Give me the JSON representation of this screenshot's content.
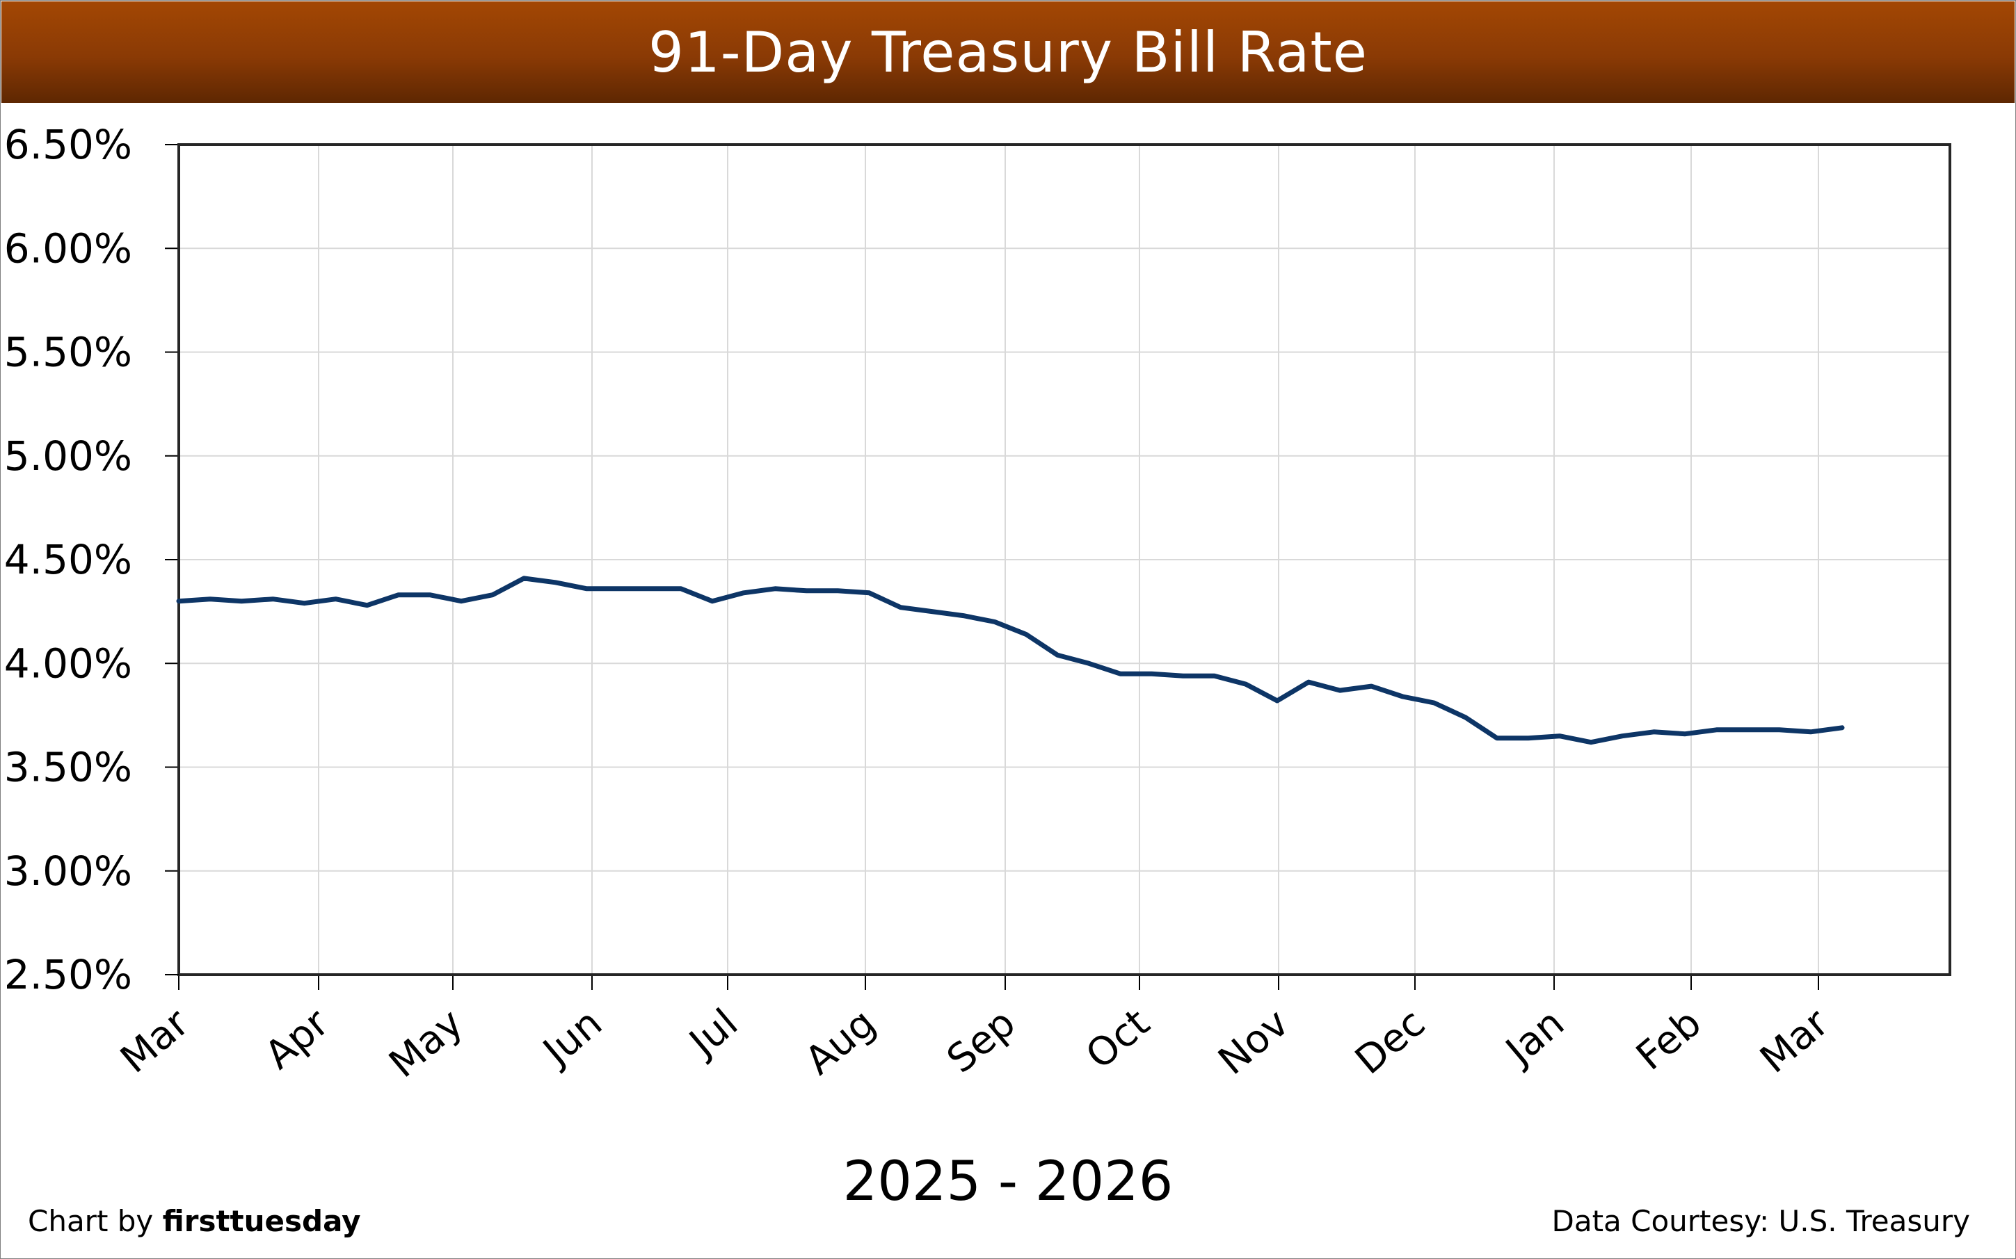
{
  "chart_data": {
    "type": "line",
    "title": "91-Day Treasury Bill Rate",
    "xlabel": "2025 - 2026",
    "ylabel": "",
    "ylim": [
      2.5,
      6.5
    ],
    "y_tick_values": [
      2.5,
      3.0,
      3.5,
      4.0,
      4.5,
      5.0,
      5.5,
      6.0,
      6.5
    ],
    "y_tick_labels": [
      "2.50%",
      "3.00%",
      "3.50%",
      "4.00%",
      "4.50%",
      "5.00%",
      "5.50%",
      "6.00%",
      "6.50%"
    ],
    "x_tick_labels": [
      "Mar",
      "Apr",
      "May",
      "Jun",
      "Jul",
      "Aug",
      "Sep",
      "Oct",
      "Nov",
      "Dec",
      "Jan",
      "Feb",
      "Mar"
    ],
    "grid": true,
    "legend": "none",
    "series": [
      {
        "color": "#0d3566",
        "values": [
          4.3,
          4.31,
          4.3,
          4.31,
          4.29,
          4.31,
          4.28,
          4.33,
          4.33,
          4.3,
          4.33,
          4.41,
          4.39,
          4.36,
          4.36,
          4.36,
          4.36,
          4.3,
          4.34,
          4.36,
          4.35,
          4.35,
          4.34,
          4.27,
          4.25,
          4.23,
          4.2,
          4.14,
          4.04,
          4.0,
          3.95,
          3.95,
          3.94,
          3.94,
          3.9,
          3.82,
          3.91,
          3.87,
          3.89,
          3.84,
          3.81,
          3.74,
          3.64,
          3.64,
          3.65,
          3.62,
          3.65,
          3.67,
          3.66,
          3.68,
          3.68,
          3.68,
          3.67,
          3.69
        ]
      }
    ]
  },
  "credits": {
    "left_prefix": "Chart by ",
    "left_brand": "firsttuesday",
    "right": "Data Courtesy: U.S. Treasury"
  }
}
